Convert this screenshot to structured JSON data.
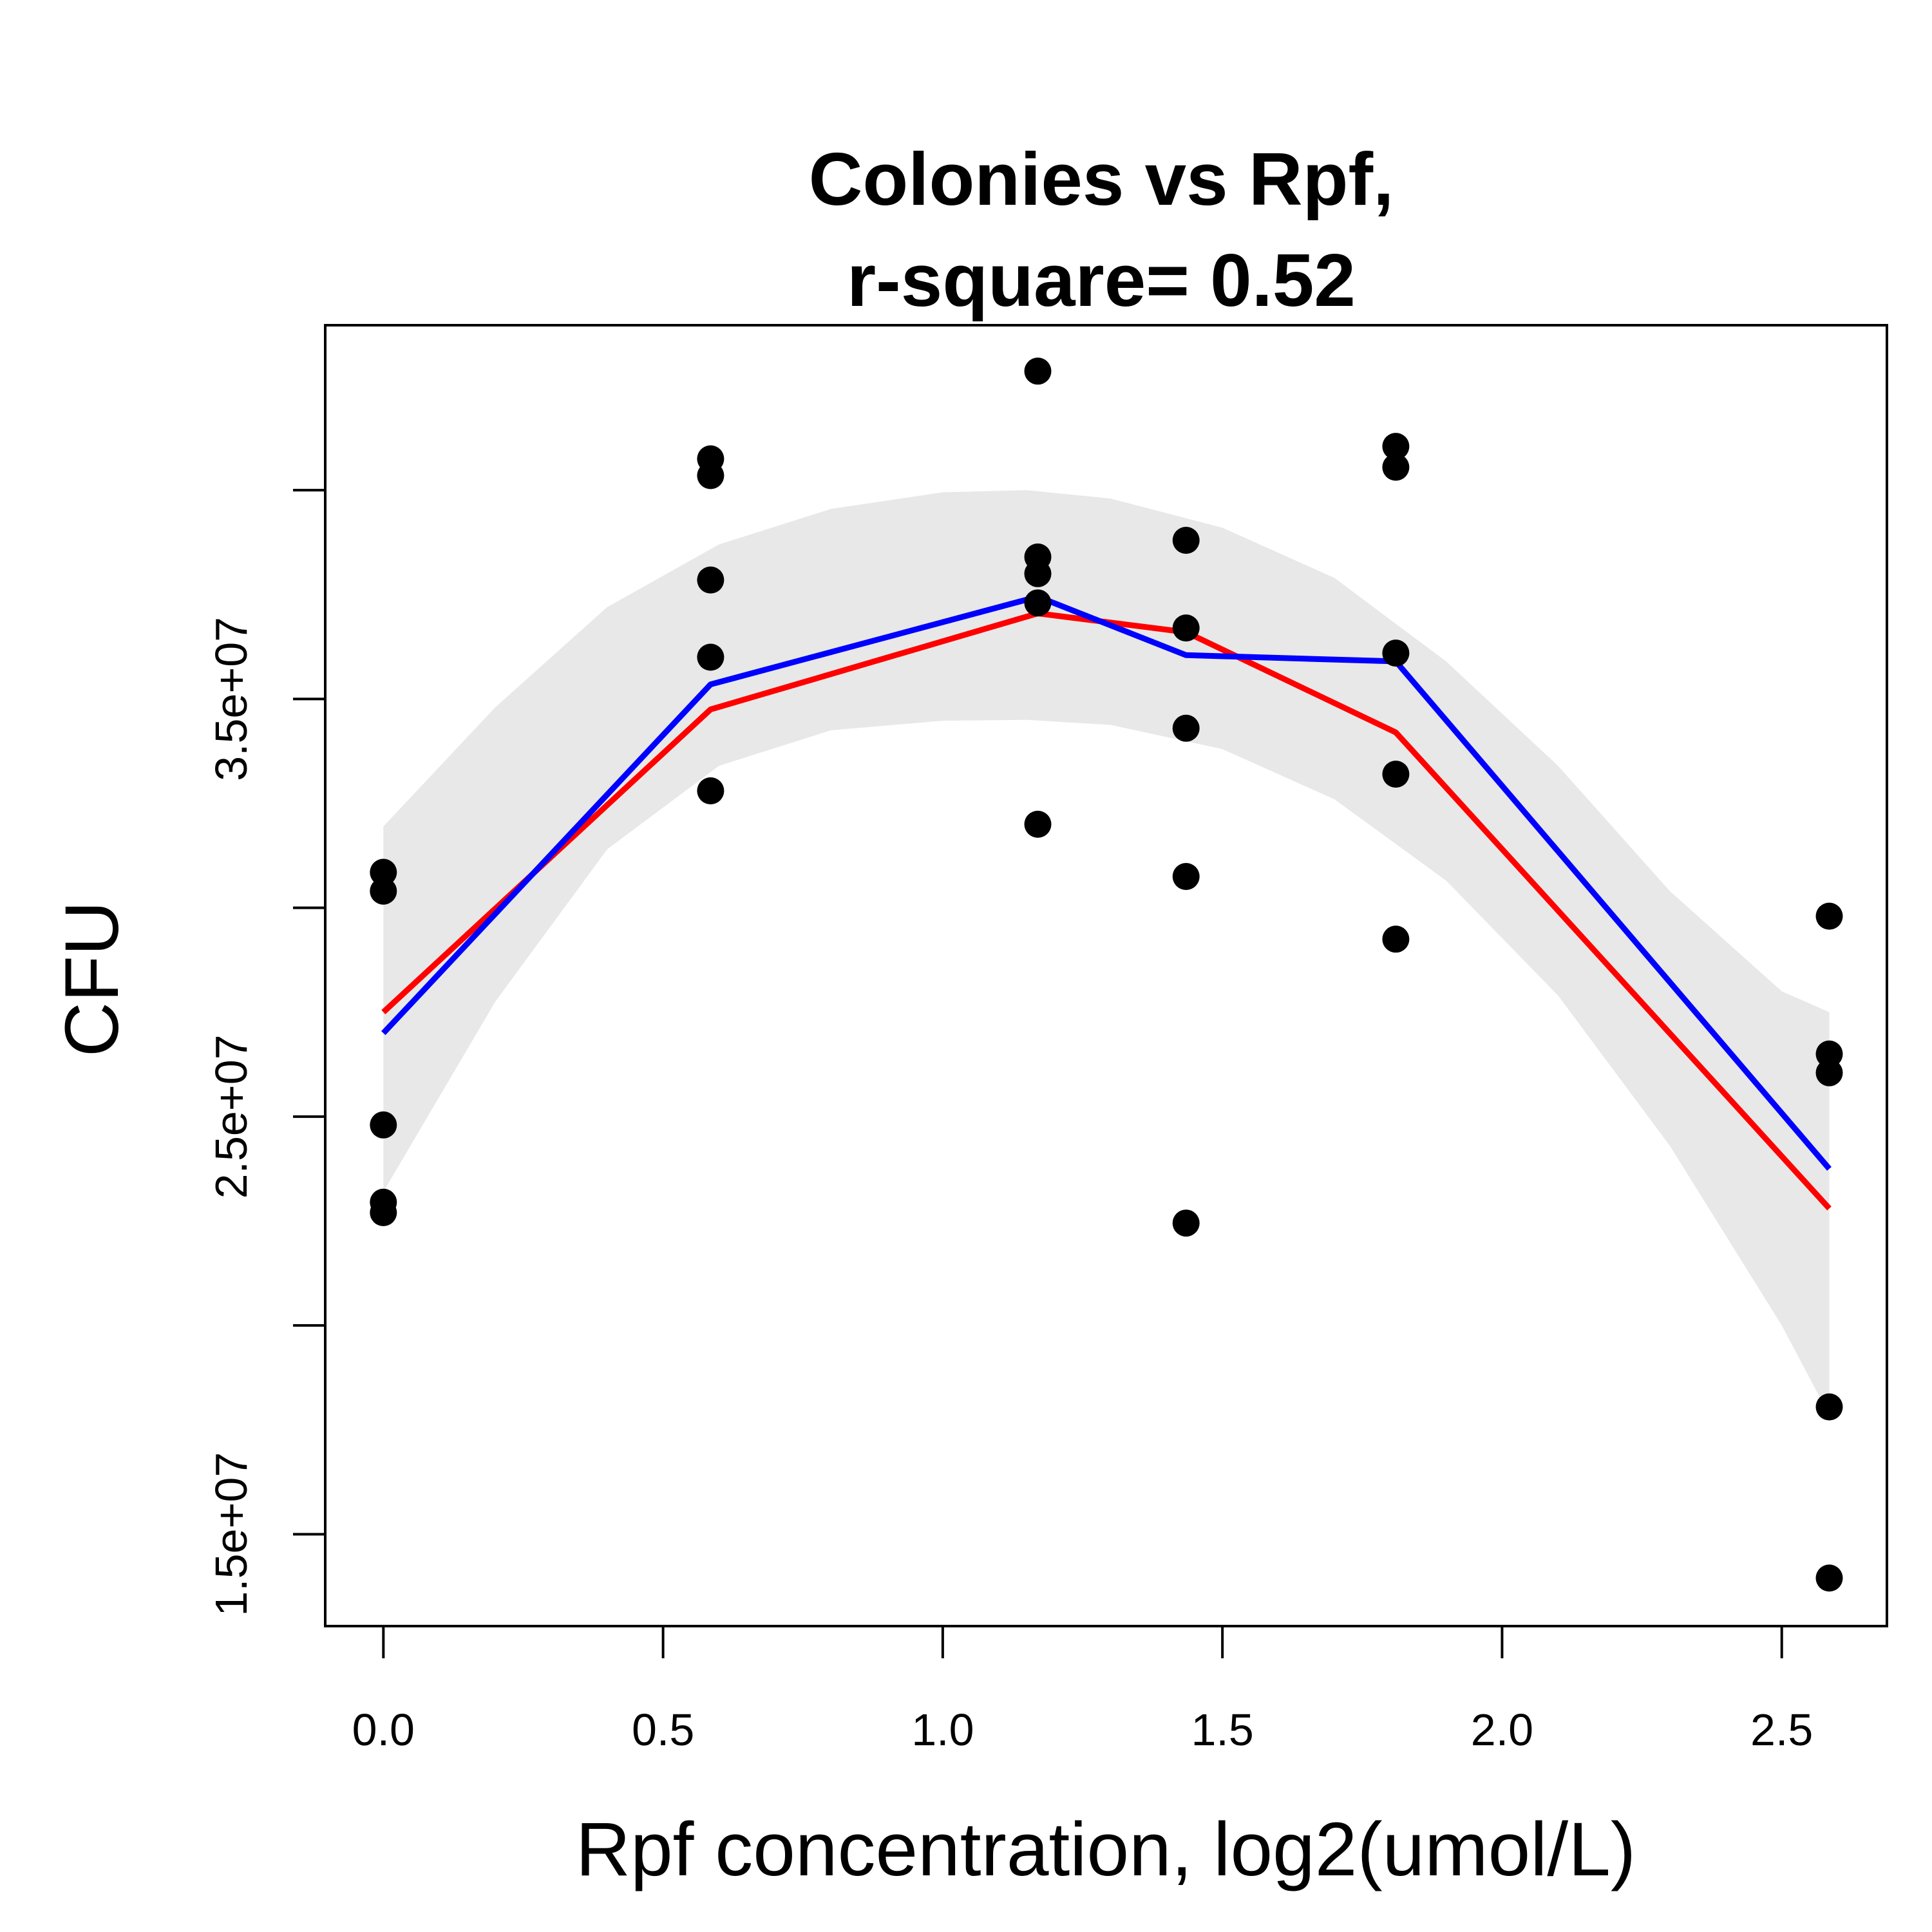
{
  "chart_data": {
    "type": "scatter",
    "title_lines": [
      "Colonies vs Rpf,",
      "r-square= 0.52"
    ],
    "xlabel": "Rpf concentration, log2(umol/L)",
    "ylabel": "CFU",
    "xlim": [
      -0.104,
      2.688
    ],
    "ylim": [
      12800000,
      43950000
    ],
    "x_ticks": [
      0.0,
      0.5,
      1.0,
      1.5,
      2.0,
      2.5
    ],
    "x_tick_labels": [
      "0.0",
      "0.5",
      "1.0",
      "1.5",
      "2.0",
      "2.5"
    ],
    "y_ticks": [
      15000000,
      20000000,
      25000000,
      30000000,
      35000000,
      40000000
    ],
    "y_tick_labels": [
      "1.5e+07",
      "",
      "2.5e+07",
      "",
      "3.5e+07",
      ""
    ],
    "grid": false,
    "points": [
      {
        "x": 0.0,
        "y": 30850000
      },
      {
        "x": 0.0,
        "y": 30400000
      },
      {
        "x": 0.0,
        "y": 24800000
      },
      {
        "x": 0.0,
        "y": 22950000
      },
      {
        "x": 0.0,
        "y": 22700000
      },
      {
        "x": 0.585,
        "y": 40750000
      },
      {
        "x": 0.585,
        "y": 40350000
      },
      {
        "x": 0.585,
        "y": 37850000
      },
      {
        "x": 0.585,
        "y": 36000000
      },
      {
        "x": 0.585,
        "y": 32800000
      },
      {
        "x": 1.17,
        "y": 42850000
      },
      {
        "x": 1.17,
        "y": 38400000
      },
      {
        "x": 1.17,
        "y": 38000000
      },
      {
        "x": 1.17,
        "y": 37300000
      },
      {
        "x": 1.17,
        "y": 32000000
      },
      {
        "x": 1.435,
        "y": 38800000
      },
      {
        "x": 1.435,
        "y": 36700000
      },
      {
        "x": 1.435,
        "y": 34300000
      },
      {
        "x": 1.435,
        "y": 30750000
      },
      {
        "x": 1.435,
        "y": 22450000
      },
      {
        "x": 1.81,
        "y": 41050000
      },
      {
        "x": 1.81,
        "y": 40550000
      },
      {
        "x": 1.81,
        "y": 36100000
      },
      {
        "x": 1.81,
        "y": 33200000
      },
      {
        "x": 1.81,
        "y": 29250000
      },
      {
        "x": 2.585,
        "y": 29800000
      },
      {
        "x": 2.585,
        "y": 26500000
      },
      {
        "x": 2.585,
        "y": 26050000
      },
      {
        "x": 2.585,
        "y": 18050000
      },
      {
        "x": 2.585,
        "y": 13950000
      }
    ],
    "series": [
      {
        "color": "#ff0000",
        "x": [
          0.0,
          0.585,
          1.17,
          1.435,
          1.81,
          2.585
        ],
        "y": [
          27500000,
          34750000,
          37050000,
          36600000,
          34200000,
          22800000
        ]
      },
      {
        "color": "#0000ff",
        "x": [
          0.0,
          0.585,
          1.17,
          1.435,
          1.81,
          2.585
        ],
        "y": [
          27000000,
          35350000,
          37450000,
          36050000,
          35900000,
          23750000
        ]
      }
    ],
    "confidence_band": {
      "color": "#e8e8e8",
      "x": [
        0.0,
        0.2,
        0.4,
        0.6,
        0.8,
        1.0,
        1.15,
        1.3,
        1.5,
        1.7,
        1.9,
        2.1,
        2.3,
        2.5,
        2.585
      ],
      "upper": [
        31950000,
        34800000,
        37200000,
        38700000,
        39550000,
        39950000,
        40000000,
        39800000,
        39100000,
        37900000,
        35900000,
        33400000,
        30400000,
        28000000,
        27500000
      ],
      "lower": [
        23200000,
        27750000,
        31400000,
        33400000,
        34250000,
        34480000,
        34500000,
        34380000,
        33800000,
        32600000,
        30650000,
        27900000,
        24300000,
        20000000,
        17850000
      ]
    },
    "point_color": "#000000"
  }
}
